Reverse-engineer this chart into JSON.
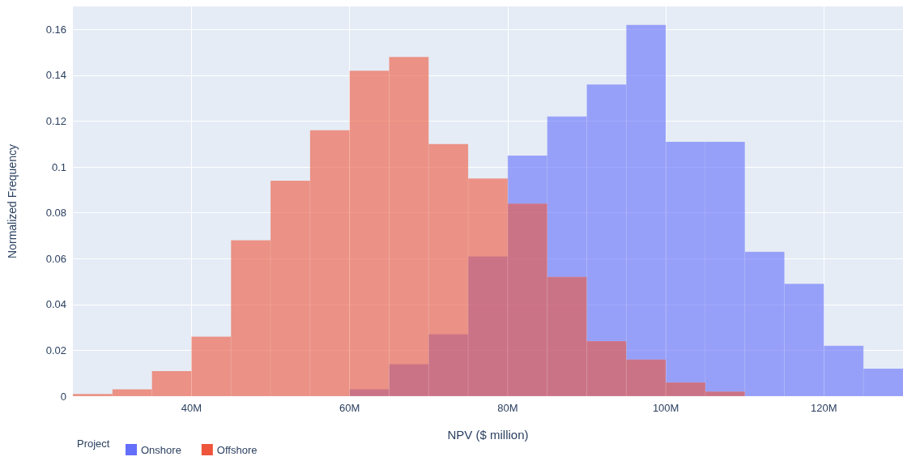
{
  "chart_data": {
    "type": "histogram",
    "xlabel": "NPV ($ million)",
    "ylabel": "Normalized Frequency",
    "legend_title": "Project",
    "legend": "bottom left",
    "grid": true,
    "xlim": [
      25,
      130
    ],
    "xticks": [
      {
        "value": 40,
        "label": "40M"
      },
      {
        "value": 60,
        "label": "60M"
      },
      {
        "value": 80,
        "label": "80M"
      },
      {
        "value": 100,
        "label": "100M"
      },
      {
        "value": 120,
        "label": "120M"
      }
    ],
    "ylim": [
      0,
      0.17
    ],
    "yticks": [
      0,
      0.02,
      0.04,
      0.06,
      0.08,
      0.1,
      0.12,
      0.14,
      0.16
    ],
    "bins": [
      25,
      30,
      35,
      40,
      45,
      50,
      55,
      60,
      65,
      70,
      75,
      80,
      85,
      90,
      95,
      100,
      105,
      110,
      115,
      120,
      125,
      130
    ],
    "series": [
      {
        "name": "Onshore",
        "color": "#636efa",
        "values": [
          null,
          null,
          null,
          null,
          null,
          null,
          null,
          0.003,
          0.014,
          0.027,
          0.061,
          0.105,
          0.122,
          0.136,
          0.162,
          0.111,
          0.111,
          0.063,
          0.049,
          0.022,
          0.012
        ]
      },
      {
        "name": "Offshore",
        "color": "#ef553b",
        "values": [
          0.001,
          0.003,
          0.011,
          0.026,
          0.068,
          0.094,
          0.116,
          0.142,
          0.148,
          0.11,
          0.095,
          0.084,
          0.052,
          0.024,
          0.016,
          0.006,
          0.002,
          null,
          null,
          null,
          null
        ]
      }
    ]
  }
}
